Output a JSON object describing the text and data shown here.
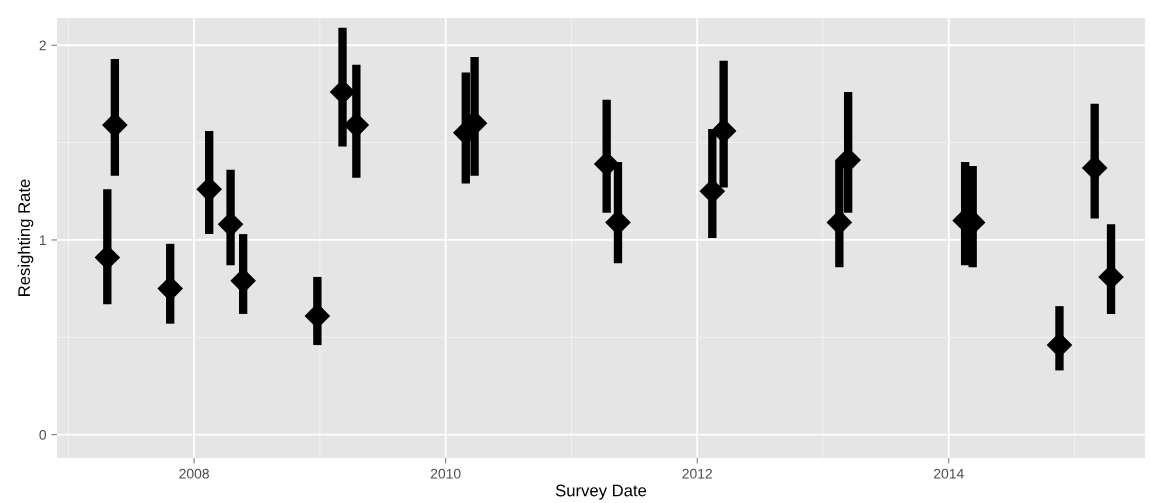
{
  "chart_data": {
    "type": "scatter",
    "xlabel": "Survey Date",
    "ylabel": "Resighting Rate",
    "x": [
      2007.31,
      2007.37,
      2007.81,
      2008.12,
      2008.29,
      2008.39,
      2008.98,
      2009.18,
      2009.29,
      2010.16,
      2010.23,
      2011.28,
      2011.37,
      2012.12,
      2012.21,
      2013.13,
      2013.2,
      2014.13,
      2014.19,
      2014.88,
      2015.16,
      2015.29
    ],
    "values": [
      0.91,
      1.59,
      0.75,
      1.26,
      1.08,
      0.79,
      0.61,
      1.76,
      1.59,
      1.55,
      1.6,
      1.39,
      1.09,
      1.25,
      1.56,
      1.09,
      1.41,
      1.1,
      1.09,
      0.46,
      1.37,
      0.81
    ],
    "errors": [
      [
        0.67,
        1.26
      ],
      [
        1.33,
        1.93
      ],
      [
        0.57,
        0.98
      ],
      [
        1.03,
        1.56
      ],
      [
        0.87,
        1.36
      ],
      [
        0.62,
        1.03
      ],
      [
        0.46,
        0.81
      ],
      [
        1.48,
        2.09
      ],
      [
        1.32,
        1.9
      ],
      [
        1.29,
        1.86
      ],
      [
        1.33,
        1.94
      ],
      [
        1.14,
        1.72
      ],
      [
        0.88,
        1.4
      ],
      [
        1.01,
        1.57
      ],
      [
        1.27,
        1.92
      ],
      [
        0.86,
        1.41
      ],
      [
        1.14,
        1.76
      ],
      [
        0.87,
        1.4
      ],
      [
        0.86,
        1.38
      ],
      [
        0.33,
        0.66
      ],
      [
        1.11,
        1.7
      ],
      [
        0.62,
        1.08
      ]
    ],
    "color": "#000000",
    "marker": "diamond",
    "xlim": [
      2006.91,
      2015.56
    ],
    "ylim": [
      -0.12,
      2.14
    ],
    "xticks": [
      2008,
      2010,
      2012,
      2014
    ],
    "yticks": [
      0,
      1,
      2
    ],
    "grid": true
  }
}
